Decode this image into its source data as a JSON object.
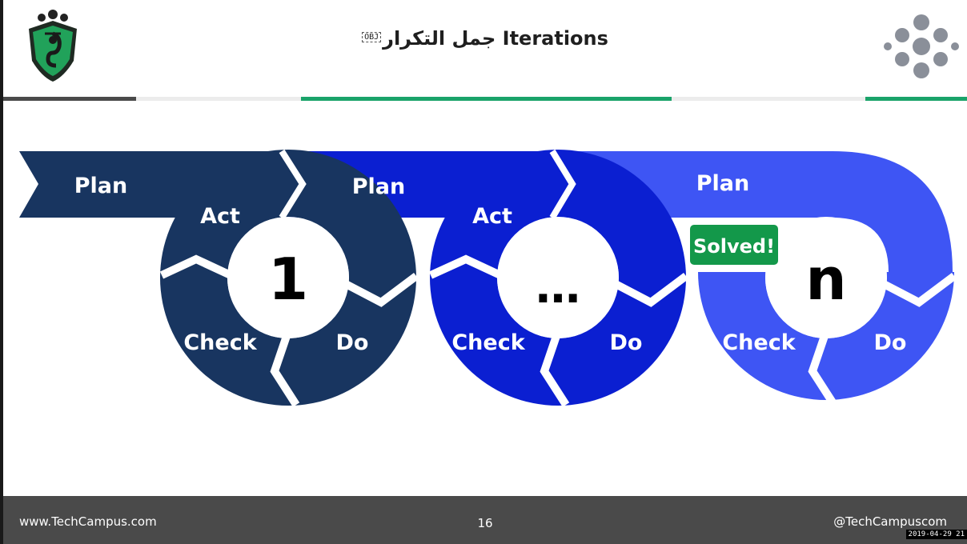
{
  "slide": {
    "title_obj": "OBJ",
    "title": "جمل التكرار Iterations"
  },
  "cycles": [
    {
      "plan": "Plan",
      "act": "Act",
      "center": "1",
      "check": "Check",
      "do": "Do"
    },
    {
      "plan": "Plan",
      "act": "Act",
      "center": "…",
      "check": "Check",
      "do": "Do"
    },
    {
      "plan": "Plan",
      "badge": "Solved!",
      "center": "n",
      "check": "Check",
      "do": "Do"
    }
  ],
  "colors": {
    "cycle1": "#183560",
    "cycle2": "#0b1fd1",
    "cycle3": "#3e55f4",
    "solved_badge": "#13984a",
    "accent_green": "#1aa36a",
    "footer": "#4a4a4a"
  },
  "footer": {
    "website": "www.TechCampus.com",
    "page_number": "16",
    "handle": "@TechCampuscom",
    "timestamp": "2019-04-29 21"
  },
  "icons": {
    "logo": "cobra-shield-logo",
    "brand_mark": "dot-cluster-icon"
  }
}
